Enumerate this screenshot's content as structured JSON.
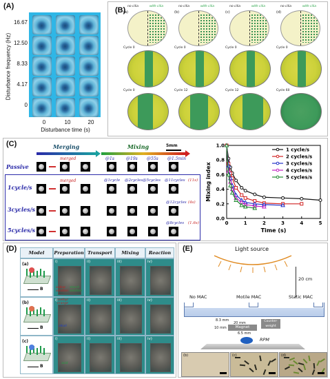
{
  "panels": {
    "a": {
      "label": "(A)",
      "ylabel": "Disturbance frequency (Hz)",
      "xlabel": "Disturbance time (s)",
      "yticks": [
        "16.67",
        "12.50",
        "8.33",
        "4.17",
        "0"
      ],
      "xticks": [
        "0",
        "10",
        "20"
      ]
    },
    "b": {
      "label": "(B)",
      "subpanels": [
        "(a)",
        "(b)",
        "(c)",
        "(d)"
      ],
      "no_cilia": "no cilia",
      "with_cilia": "with cilia",
      "cycle0": "Cycle 0",
      "cycle12": "Cycle 12",
      "cycle60": "Cycle 60"
    },
    "c": {
      "label": "(C)",
      "merging": "Merging",
      "mixing": "Mixing",
      "scale": "5mm",
      "merged": "merged",
      "rows": [
        "Passive",
        "1cycle/s",
        "3cycles/s",
        "5cycles/s"
      ],
      "passive_times": [
        "@1s",
        "@19s",
        "@55s",
        "@1.5min"
      ],
      "r1_labels": [
        "@1cycle",
        "@2cycles",
        "@5cycles"
      ],
      "r1_final": "@11cycles",
      "r1_final_time": "(11s)",
      "r3_final": "@12cycles",
      "r3_final_time": "(4s)",
      "r5_final": "@8cycles",
      "r5_final_time": "(1.6s)"
    },
    "d": {
      "label": "(D)",
      "headers": [
        "Model",
        "Preparation",
        "Transport",
        "Mixing",
        "Reaction"
      ],
      "rows": [
        "(a)",
        "(b)",
        "(c)"
      ],
      "roman": [
        "i)",
        "ii)",
        "iii)",
        "iv)"
      ],
      "field": "B",
      "notes": {
        "iodine": "iodine solution",
        "starch": "starch solution",
        "methyl": "methyl orange",
        "alkali": "alkali",
        "acid": "acid"
      }
    },
    "e": {
      "label": "(E)",
      "light": "Light source",
      "distance": "20 cm",
      "conditions": [
        "No MAC",
        "Motile MAC",
        "Static MAC"
      ],
      "dims": [
        "8.3 mm",
        "20 mm",
        "10 mm",
        "6.5 mm"
      ],
      "magnet": "Magnet",
      "counterweight": "Counter-weight",
      "rpm": "RPM",
      "subs": [
        "(b)",
        "(c)",
        "(d)"
      ]
    }
  },
  "chart_data": {
    "type": "line",
    "xlabel": "Time (s)",
    "ylabel": "Mixing index",
    "xlim": [
      0,
      5
    ],
    "ylim": [
      0,
      1.0
    ],
    "xticks": [
      "0",
      "1",
      "2",
      "3",
      "4",
      "5"
    ],
    "yticks": [
      "0.0",
      "0.2",
      "0.4",
      "0.6",
      "0.8",
      "1.0"
    ],
    "legend_position": "top-right",
    "series": [
      {
        "name": "1 cycle/s",
        "color": "#111111",
        "x": [
          0,
          0.1,
          0.2,
          0.3,
          0.5,
          0.8,
          1.0,
          1.5,
          2.0,
          3.0,
          4.0,
          5.0
        ],
        "y": [
          1.0,
          0.82,
          0.7,
          0.62,
          0.52,
          0.42,
          0.38,
          0.33,
          0.29,
          0.28,
          0.27,
          0.25
        ]
      },
      {
        "name": "2 cycles/s",
        "color": "#d02020",
        "x": [
          0,
          0.1,
          0.2,
          0.3,
          0.5,
          0.8,
          1.0,
          1.5,
          2.0,
          3.0,
          4.0
        ],
        "y": [
          1.0,
          0.75,
          0.62,
          0.55,
          0.42,
          0.32,
          0.28,
          0.24,
          0.21,
          0.2,
          0.2
        ]
      },
      {
        "name": "3 cycles/s",
        "color": "#2030c8",
        "x": [
          0,
          0.1,
          0.2,
          0.3,
          0.5,
          0.8,
          1.0,
          1.5,
          2.0,
          3.0
        ],
        "y": [
          1.0,
          0.72,
          0.55,
          0.45,
          0.32,
          0.25,
          0.22,
          0.2,
          0.19,
          0.18
        ]
      },
      {
        "name": "4 cycles/s",
        "color": "#c020c0",
        "x": [
          0,
          0.1,
          0.2,
          0.3,
          0.5,
          0.8,
          1.0,
          1.5,
          2.0
        ],
        "y": [
          1.0,
          0.65,
          0.5,
          0.4,
          0.28,
          0.22,
          0.19,
          0.17,
          0.16
        ]
      },
      {
        "name": "5 cycles/s",
        "color": "#208a30",
        "x": [
          0,
          0.1,
          0.2,
          0.3,
          0.5,
          0.8,
          1.0,
          1.5
        ],
        "y": [
          1.0,
          0.6,
          0.45,
          0.35,
          0.25,
          0.18,
          0.16,
          0.14
        ]
      }
    ]
  }
}
